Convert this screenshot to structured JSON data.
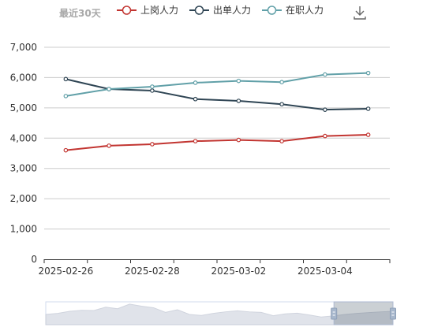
{
  "period_label": "最近30天",
  "colors": {
    "series": [
      "#c23531",
      "#2f4554",
      "#61a0a8"
    ],
    "grid": "#cccccc",
    "axis": "#333333"
  },
  "icons": {
    "download": "download-icon"
  },
  "chart_data": {
    "type": "line",
    "x": [
      "2025-02-26",
      "2025-02-27",
      "2025-02-28",
      "2025-03-01",
      "2025-03-02",
      "2025-03-03",
      "2025-03-04",
      "2025-03-05"
    ],
    "x_tick_labels": [
      "2025-02-26",
      "2025-02-28",
      "2025-03-02",
      "2025-03-04"
    ],
    "y_tick_labels": [
      "0",
      "1,000",
      "2,000",
      "3,000",
      "4,000",
      "5,000",
      "6,000",
      "7,000"
    ],
    "ylim": [
      0,
      7000
    ],
    "grid": true,
    "legend_position": "top",
    "series": [
      {
        "name": "上岗人力",
        "values": [
          3600,
          3750,
          3800,
          3900,
          3940,
          3900,
          4070,
          4110
        ]
      },
      {
        "name": "出单人力",
        "values": [
          5950,
          5620,
          5570,
          5290,
          5230,
          5120,
          4940,
          4970
        ]
      },
      {
        "name": "在职人力",
        "values": [
          5390,
          5620,
          5700,
          5830,
          5890,
          5850,
          6100,
          6150
        ]
      }
    ]
  },
  "data_zoom": {
    "range_start_fraction": 0.83,
    "range_end_fraction": 1.0,
    "overview_values": [
      40,
      44,
      52,
      56,
      55,
      68,
      62,
      80,
      72,
      66,
      48,
      58,
      40,
      36,
      44,
      50,
      54,
      50,
      48,
      35,
      42,
      45,
      38,
      30,
      34,
      40,
      44,
      47,
      50,
      52
    ]
  }
}
